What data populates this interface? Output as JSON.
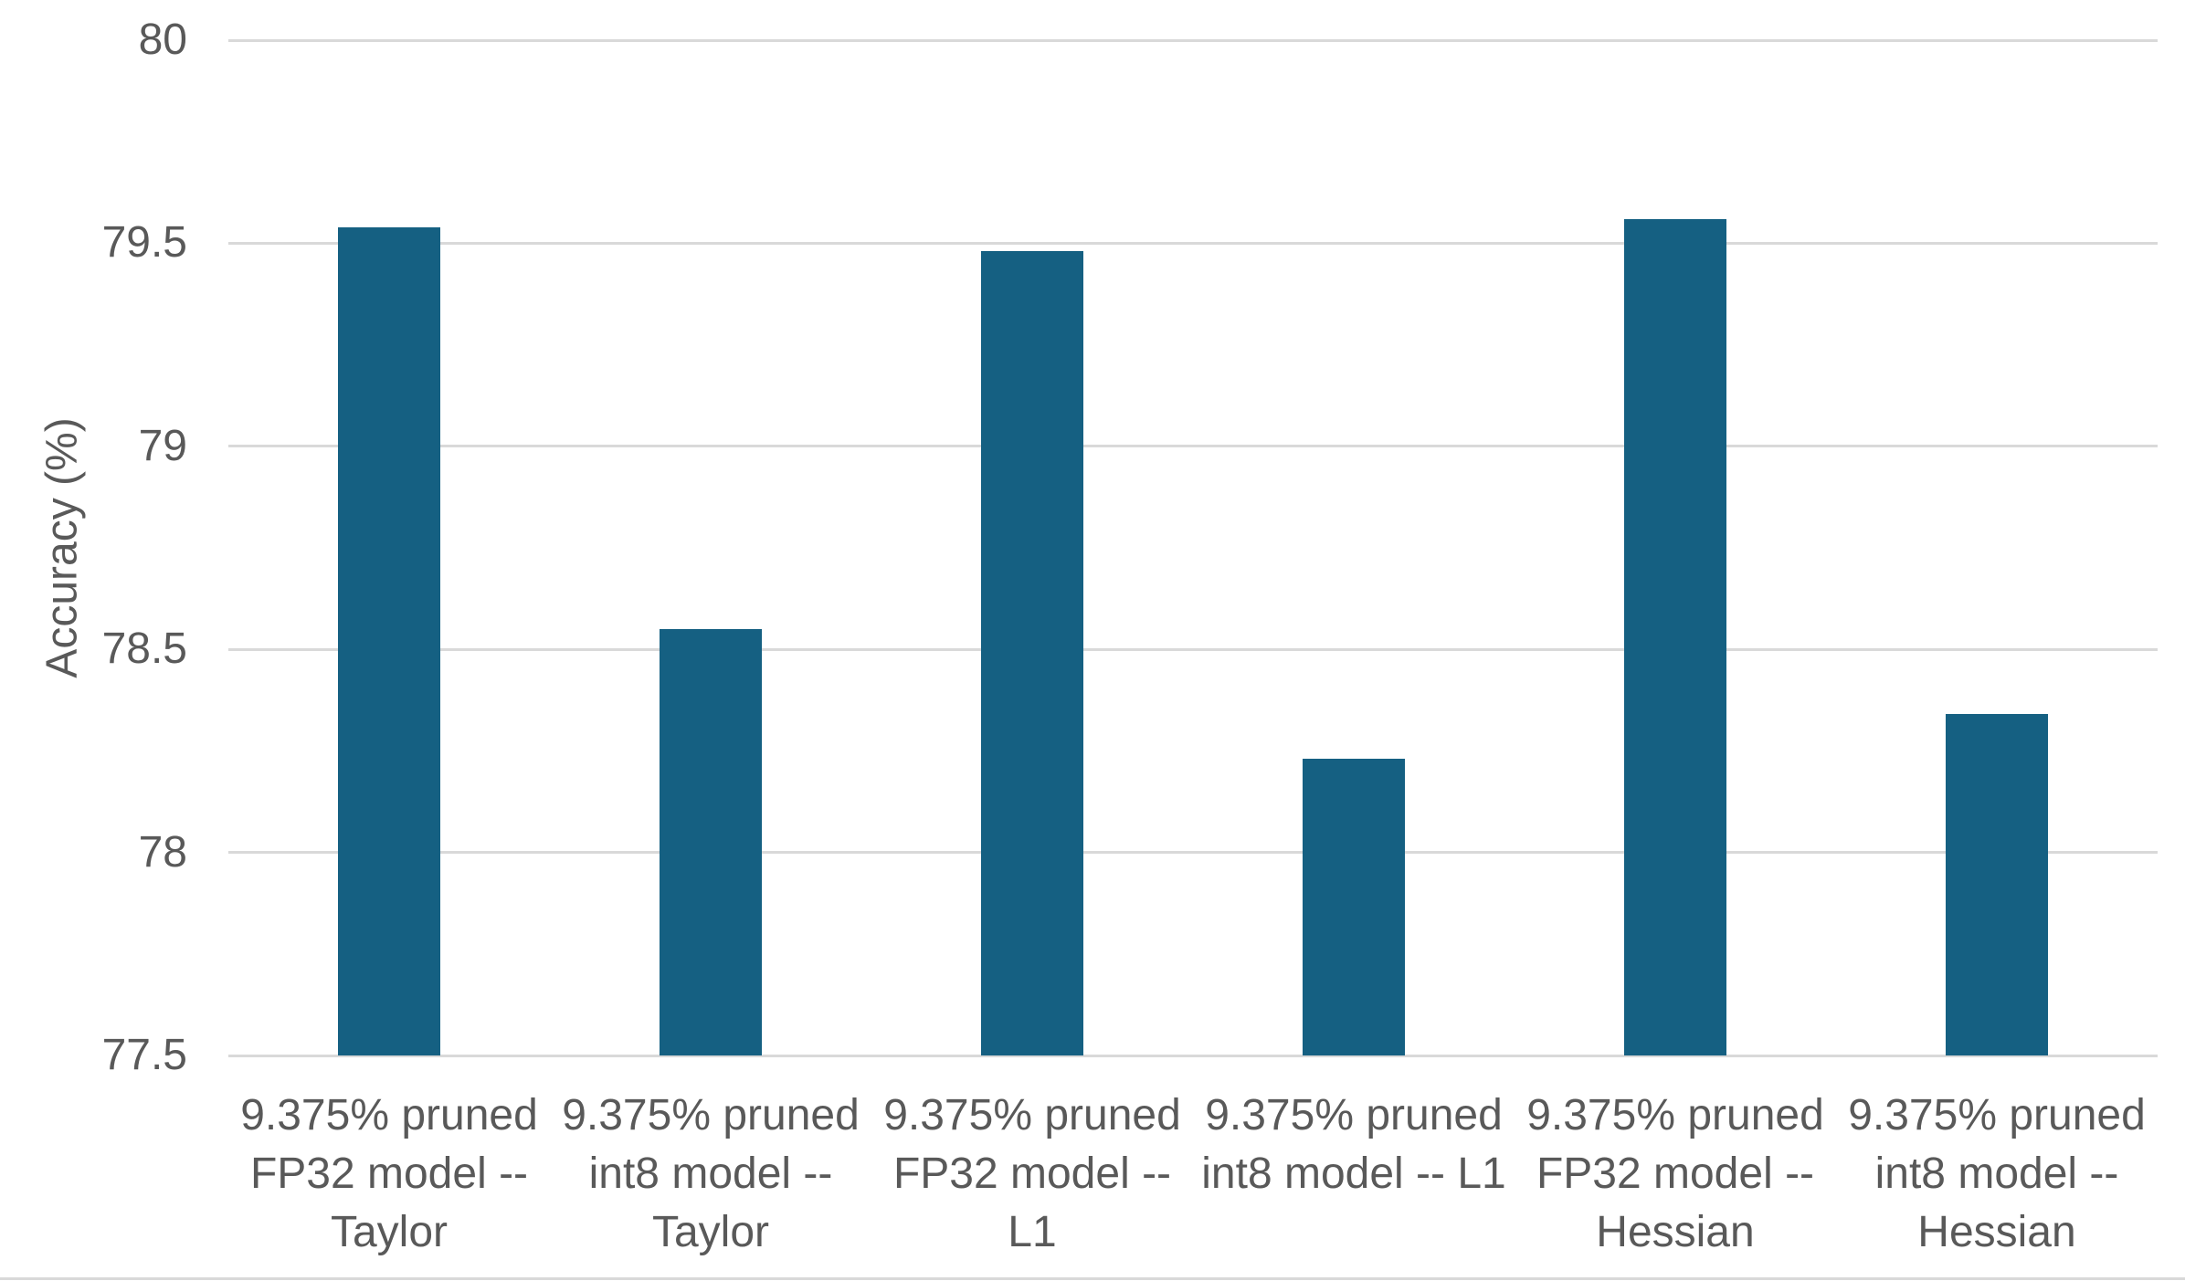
{
  "style": {
    "background": "#ffffff",
    "grid_color": "#d9d9d9",
    "text_color": "#595959",
    "bar_color": "#156082",
    "frame_color": "#d9d9d9"
  },
  "chart_data": {
    "type": "bar",
    "title": "",
    "xlabel": "",
    "ylabel": "Accuracy (%)",
    "ylim": [
      77.5,
      80
    ],
    "ytick_interval": 0.5,
    "grid": true,
    "legend": "none",
    "yticks": [
      {
        "value": 80,
        "label": "80"
      },
      {
        "value": 79.5,
        "label": "79.5"
      },
      {
        "value": 79,
        "label": "79"
      },
      {
        "value": 78.5,
        "label": "78.5"
      },
      {
        "value": 78,
        "label": "78"
      },
      {
        "value": 77.5,
        "label": "77.5"
      }
    ],
    "categories": [
      "9.375% pruned\nFP32 model --\nTaylor",
      "9.375% pruned\nint8 model --\nTaylor",
      "9.375% pruned\nFP32 model --\nL1",
      "9.375% pruned\nint8 model -- L1",
      "9.375% pruned\nFP32 model --\nHessian",
      "9.375% pruned\nint8 model --\nHessian"
    ],
    "series": [
      {
        "name": "Accuracy (%)",
        "values": [
          79.54,
          78.55,
          79.48,
          78.23,
          79.56,
          78.34
        ]
      }
    ]
  }
}
